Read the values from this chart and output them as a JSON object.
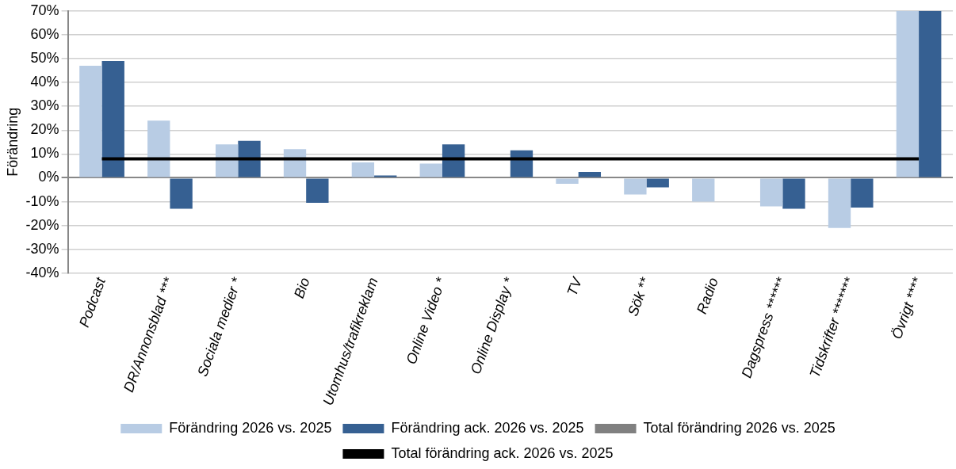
{
  "chart_data": {
    "type": "bar",
    "ylabel": "Förändring",
    "categories": [
      "Podcast",
      "DR/Annonsblad ***",
      "Sociala medier *",
      "Bio",
      "Utomhus/trafikreklam",
      "Online Video *",
      "Online Display *",
      "TV",
      "Sök **",
      "Radio",
      "Dagspress ******",
      "Tidskrifter *******",
      "Övrigt ****"
    ],
    "series": [
      {
        "name": "Förändring 2026 vs. 2025",
        "color": "#b8cce4",
        "values": [
          47,
          24,
          14,
          12,
          6.5,
          6,
          null,
          -2.5,
          -7,
          -10,
          -12,
          -21,
          70
        ]
      },
      {
        "name": "Förändring ack. 2026 vs. 2025",
        "color": "#366092",
        "values": [
          49,
          -13,
          15.5,
          -10.5,
          1,
          14,
          11.5,
          2.5,
          -4,
          null,
          -13,
          -12.5,
          70
        ]
      },
      {
        "name": "Total förändring 2026 vs. 2025",
        "type": "line",
        "color": "#808080",
        "values": [
          null,
          null,
          null,
          null,
          null,
          null,
          null,
          null,
          null,
          null,
          null,
          null,
          null
        ]
      },
      {
        "name": "Total förändring ack. 2026 vs. 2025",
        "type": "line",
        "color": "#000000",
        "values": [
          8,
          8,
          8,
          8,
          8,
          8,
          8,
          8,
          8,
          8,
          8,
          8,
          8
        ]
      }
    ],
    "ylim": [
      -40,
      70
    ],
    "yticks": [
      {
        "value": -40,
        "label": "-40%"
      },
      {
        "value": -30,
        "label": "-30%"
      },
      {
        "value": -20,
        "label": "-20%"
      },
      {
        "value": -10,
        "label": "-10%"
      },
      {
        "value": 0,
        "label": "0%"
      },
      {
        "value": 10,
        "label": "10%"
      },
      {
        "value": 20,
        "label": "20%"
      },
      {
        "value": 30,
        "label": "30%"
      },
      {
        "value": 40,
        "label": "40%"
      },
      {
        "value": 50,
        "label": "50%"
      },
      {
        "value": 60,
        "label": "60%"
      },
      {
        "value": 70,
        "label": "70%"
      }
    ],
    "grid": "y",
    "legend": "bottom",
    "marker": "none",
    "line_style": "solid"
  }
}
